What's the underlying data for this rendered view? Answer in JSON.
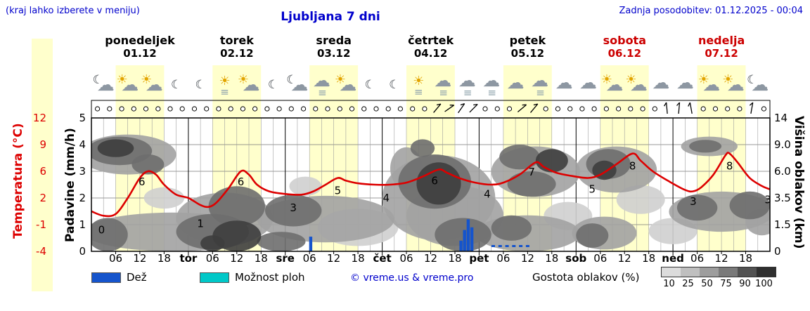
{
  "header": {
    "note": "(kraj lahko izberete v meniju)",
    "title": "Ljubljana 7 dni",
    "updated": "Zadnja posodobitev: 01.12.2025 - 00:04",
    "text_color": "#0000cc"
  },
  "days": [
    {
      "name": "ponedeljek",
      "date": "01.12",
      "weekend": false
    },
    {
      "name": "torek",
      "date": "02.12",
      "weekend": false
    },
    {
      "name": "sreda",
      "date": "03.12",
      "weekend": false
    },
    {
      "name": "četrtek",
      "date": "04.12",
      "weekend": false
    },
    {
      "name": "petek",
      "date": "05.12",
      "weekend": false
    },
    {
      "name": "sobota",
      "date": "06.12",
      "weekend": true
    },
    {
      "name": "nedelja",
      "date": "07.12",
      "weekend": true
    }
  ],
  "weekend_color": "#cc0000",
  "axes": {
    "left_temp": {
      "label": "Temperatura (°C)",
      "ticks": [
        "12",
        "9",
        "6",
        "2",
        "-1",
        "-4"
      ],
      "color": "#dd0000"
    },
    "left_precip": {
      "label": "Padavine (mm/h)",
      "ticks": [
        "5",
        "4",
        "3",
        "2",
        "1",
        "0"
      ]
    },
    "right_cloud": {
      "label": "Višina oblakov (km)",
      "ticks": [
        "14",
        "9.0",
        "6.0",
        "3.5",
        "1.5",
        "0"
      ]
    },
    "x_hour_ticks": [
      "06",
      "12",
      "18"
    ],
    "x_day_abbr": [
      "tor",
      "sre",
      "čet",
      "pet",
      "sob",
      "ned"
    ]
  },
  "legend": {
    "rain_label": "Dež",
    "shower_label": "Možnost ploh",
    "copyright": "© vreme.us & vreme.pro",
    "cloud_density_label": "Gostota oblakov (%)",
    "density_levels": [
      "10",
      "25",
      "50",
      "75",
      "90",
      "100"
    ],
    "density_colors": [
      "#dcdcdc",
      "#bfbfbf",
      "#9d9d9d",
      "#7a7a7a",
      "#525252",
      "#2f2f2f"
    ],
    "rain_color": "#1554cc",
    "shower_color": "#00c8c8"
  },
  "chart_data": {
    "type": "line",
    "title": "Ljubljana 7 dni",
    "x_axis": "hours from Mon 01.12 00:00, span 7 days (168 h)",
    "day_bands": {
      "start_hour": 6,
      "end_hour": 18,
      "color": "#ffffcc"
    },
    "temperature_c": {
      "color": "#dd0000",
      "axis_stops": [
        -4,
        -1,
        2,
        6,
        9,
        12
      ],
      "series": [
        [
          0,
          0.5
        ],
        [
          3,
          0
        ],
        [
          6,
          0.2
        ],
        [
          9,
          2
        ],
        [
          12,
          5
        ],
        [
          14,
          6
        ],
        [
          16,
          5.5
        ],
        [
          18,
          4
        ],
        [
          21,
          2.5
        ],
        [
          24,
          2
        ],
        [
          27,
          1.2
        ],
        [
          29,
          1
        ],
        [
          31,
          1.5
        ],
        [
          34,
          3.5
        ],
        [
          37,
          6
        ],
        [
          39,
          5.5
        ],
        [
          41,
          4
        ],
        [
          44,
          3
        ],
        [
          48,
          2.6
        ],
        [
          52,
          2.5
        ],
        [
          55,
          3
        ],
        [
          58,
          4
        ],
        [
          61,
          5
        ],
        [
          63,
          4.6
        ],
        [
          66,
          4.2
        ],
        [
          70,
          4
        ],
        [
          74,
          4
        ],
        [
          78,
          4.3
        ],
        [
          82,
          5.2
        ],
        [
          86,
          6.2
        ],
        [
          88,
          5.8
        ],
        [
          91,
          5
        ],
        [
          95,
          4.3
        ],
        [
          99,
          4
        ],
        [
          102,
          4.3
        ],
        [
          106,
          5.5
        ],
        [
          110,
          7
        ],
        [
          112,
          6.5
        ],
        [
          115,
          5.8
        ],
        [
          119,
          5.3
        ],
        [
          123,
          5
        ],
        [
          126,
          5.5
        ],
        [
          130,
          6.8
        ],
        [
          134,
          8
        ],
        [
          136,
          7.2
        ],
        [
          139,
          6
        ],
        [
          143,
          4.5
        ],
        [
          147,
          3.2
        ],
        [
          149,
          3
        ],
        [
          151,
          3.6
        ],
        [
          154,
          5.5
        ],
        [
          157,
          7.8
        ],
        [
          158,
          8
        ],
        [
          160,
          7
        ],
        [
          163,
          5
        ],
        [
          166,
          3.8
        ],
        [
          168,
          3.3
        ]
      ],
      "point_labels": [
        {
          "t": 2.5,
          "c": -1.6,
          "s": "0"
        },
        {
          "t": 12.5,
          "c": 4.4,
          "s": "6"
        },
        {
          "t": 27,
          "c": -0.9,
          "s": "1"
        },
        {
          "t": 37,
          "c": 4.4,
          "s": "6"
        },
        {
          "t": 50,
          "c": 0.9,
          "s": "3"
        },
        {
          "t": 61,
          "c": 3.1,
          "s": "5"
        },
        {
          "t": 73,
          "c": 2.0,
          "s": "4"
        },
        {
          "t": 85,
          "c": 4.6,
          "s": "6"
        },
        {
          "t": 98,
          "c": 2.6,
          "s": "4"
        },
        {
          "t": 109,
          "c": 5.9,
          "s": "7"
        },
        {
          "t": 124,
          "c": 3.3,
          "s": "5"
        },
        {
          "t": 134,
          "c": 6.6,
          "s": "8"
        },
        {
          "t": 149,
          "c": 1.6,
          "s": "3"
        },
        {
          "t": 158,
          "c": 6.6,
          "s": "8"
        },
        {
          "t": 167.5,
          "c": 1.8,
          "s": "3"
        }
      ]
    },
    "precipitation_mm_h": {
      "bars": [
        {
          "t": 54.3,
          "h": 0.55
        },
        {
          "t": 91.5,
          "h": 0.4
        },
        {
          "t": 92.4,
          "h": 0.8
        },
        {
          "t": 93.3,
          "h": 1.2
        },
        {
          "t": 94.2,
          "h": 0.9
        }
      ],
      "shower_marks_t": [
        99.5,
        101.2,
        102.9,
        104.6,
        106.3,
        108
      ]
    },
    "cloud_cover": {
      "height_axis_km": [
        0,
        1.5,
        3.5,
        6,
        9,
        14
      ],
      "density_legend_pct": [
        10,
        25,
        50,
        75,
        90,
        100
      ],
      "blobs": [
        {
          "t": 9,
          "km": 8.3,
          "rt": 12,
          "rkm": 2.6,
          "l": 50
        },
        {
          "t": 7,
          "km": 8.6,
          "rt": 8,
          "rkm": 1.9,
          "l": 75
        },
        {
          "t": 6,
          "km": 8.8,
          "rt": 4.5,
          "rkm": 1.2,
          "l": 90
        },
        {
          "t": 14,
          "km": 6.8,
          "rt": 4,
          "rkm": 1.1,
          "l": 75
        },
        {
          "t": 20,
          "km": 1.1,
          "rt": 22,
          "rkm": 1.3,
          "l": 50
        },
        {
          "t": 4,
          "km": 1.0,
          "rt": 5,
          "rkm": 1.0,
          "l": 75
        },
        {
          "t": 18,
          "km": 3.6,
          "rt": 5,
          "rkm": 0.9,
          "l": 25
        },
        {
          "t": 30,
          "km": 1.2,
          "rt": 9,
          "rkm": 1.1,
          "l": 75
        },
        {
          "t": 36,
          "km": 0.9,
          "rt": 6,
          "rkm": 0.9,
          "l": 90
        },
        {
          "t": 36,
          "km": 3.0,
          "rt": 7,
          "rkm": 1.6,
          "l": 75
        },
        {
          "t": 33,
          "km": 2.2,
          "rt": 12,
          "rkm": 1.8,
          "l": 50
        },
        {
          "t": 30,
          "km": 0.4,
          "rt": 3,
          "rkm": 0.5,
          "l": 90
        },
        {
          "t": 58,
          "km": 2.1,
          "rt": 17,
          "rkm": 1.6,
          "l": 50
        },
        {
          "t": 50,
          "km": 2.6,
          "rt": 7,
          "rkm": 1.2,
          "l": 75
        },
        {
          "t": 47,
          "km": 0.5,
          "rt": 6,
          "rkm": 0.6,
          "l": 75
        },
        {
          "t": 53,
          "km": 4.6,
          "rt": 4,
          "rkm": 0.9,
          "l": 25
        },
        {
          "t": 66,
          "km": 1.5,
          "rt": 10,
          "rkm": 1.2,
          "l": 25
        },
        {
          "t": 78,
          "km": 6.5,
          "rt": 4,
          "rkm": 2.2,
          "l": 50
        },
        {
          "t": 86,
          "km": 4.2,
          "rt": 14,
          "rkm": 3.6,
          "l": 50
        },
        {
          "t": 85,
          "km": 5.3,
          "rt": 9,
          "rkm": 2.6,
          "l": 75
        },
        {
          "t": 86,
          "km": 5.0,
          "rt": 5.5,
          "rkm": 2.0,
          "l": 90
        },
        {
          "t": 82,
          "km": 8.8,
          "rt": 3,
          "rkm": 1.2,
          "l": 75
        },
        {
          "t": 92,
          "km": 1.0,
          "rt": 7,
          "rkm": 1.0,
          "l": 75
        },
        {
          "t": 90,
          "km": 2.5,
          "rt": 12,
          "rkm": 2.2,
          "l": 50
        },
        {
          "t": 110,
          "km": 6.2,
          "rt": 11,
          "rkm": 2.6,
          "l": 50
        },
        {
          "t": 106,
          "km": 7.6,
          "rt": 5,
          "rkm": 1.4,
          "l": 75
        },
        {
          "t": 114,
          "km": 7.2,
          "rt": 4,
          "rkm": 1.3,
          "l": 90
        },
        {
          "t": 109,
          "km": 4.8,
          "rt": 6,
          "rkm": 1.2,
          "l": 75
        },
        {
          "t": 108,
          "km": 1.1,
          "rt": 13,
          "rkm": 1.1,
          "l": 50
        },
        {
          "t": 104,
          "km": 1.4,
          "rt": 5,
          "rkm": 0.8,
          "l": 75
        },
        {
          "t": 118,
          "km": 2.2,
          "rt": 6,
          "rkm": 1.0,
          "l": 25
        },
        {
          "t": 130,
          "km": 6.4,
          "rt": 10,
          "rkm": 2.4,
          "l": 50
        },
        {
          "t": 128,
          "km": 6.9,
          "rt": 5.5,
          "rkm": 1.6,
          "l": 75
        },
        {
          "t": 127,
          "km": 6.2,
          "rt": 3,
          "rkm": 1.0,
          "l": 90
        },
        {
          "t": 127,
          "km": 1.1,
          "rt": 8,
          "rkm": 1.0,
          "l": 50
        },
        {
          "t": 124,
          "km": 0.9,
          "rt": 4,
          "rkm": 0.7,
          "l": 75
        },
        {
          "t": 136,
          "km": 3.5,
          "rt": 6,
          "rkm": 1.2,
          "l": 25
        },
        {
          "t": 153,
          "km": 9.1,
          "rt": 7,
          "rkm": 1.4,
          "l": 50
        },
        {
          "t": 152,
          "km": 9.0,
          "rt": 4,
          "rkm": 0.9,
          "l": 75
        },
        {
          "t": 156,
          "km": 2.6,
          "rt": 13,
          "rkm": 1.5,
          "l": 50
        },
        {
          "t": 150,
          "km": 2.8,
          "rt": 5,
          "rkm": 1.0,
          "l": 75
        },
        {
          "t": 163,
          "km": 3.0,
          "rt": 5,
          "rkm": 1.1,
          "l": 75
        },
        {
          "t": 166,
          "km": 1.8,
          "rt": 4,
          "rkm": 0.9,
          "l": 50
        },
        {
          "t": 144,
          "km": 1.2,
          "rt": 6,
          "rkm": 0.8,
          "l": 25
        }
      ]
    },
    "wind": {
      "calm_symbol": "circle",
      "slot_hours": 3,
      "barbs": [
        {
          "i": 28,
          "r": 50
        },
        {
          "i": 29,
          "r": 35
        },
        {
          "i": 30,
          "r": 55
        },
        {
          "i": 31,
          "r": 45
        },
        {
          "i": 35,
          "r": 40
        },
        {
          "i": 36,
          "r": 50
        },
        {
          "i": 47,
          "r": 95
        },
        {
          "i": 48,
          "r": 85
        },
        {
          "i": 49,
          "r": 100
        },
        {
          "i": 54,
          "r": 80
        }
      ]
    },
    "weather_icons": [
      [
        "moon",
        "cloud"
      ],
      [
        "sun",
        "cloud"
      ],
      [
        "sun",
        "cloud"
      ],
      [
        "moon"
      ],
      [
        "moon"
      ],
      [
        "fog",
        "sun"
      ],
      [
        "sun",
        "cloud"
      ],
      [
        "moon"
      ],
      [
        "moon",
        "cloud"
      ],
      [
        "cloud",
        "fog"
      ],
      [
        "sun",
        "cloud"
      ],
      [
        "moon"
      ],
      [
        "moon"
      ],
      [
        "fog",
        "sun"
      ],
      [
        "cloud",
        "fog"
      ],
      [
        "cloud",
        "fog"
      ],
      [
        "cloud",
        "fog"
      ],
      [
        "cloud"
      ],
      [
        "cloud",
        "fog"
      ],
      [
        "cloud"
      ],
      [
        "cloud"
      ],
      [
        "sun",
        "cloud"
      ],
      [
        "sun",
        "cloud"
      ],
      [
        "cloud"
      ],
      [
        "cloud"
      ],
      [
        "sun",
        "cloud"
      ],
      [
        "sun",
        "cloud"
      ],
      [
        "moon",
        "cloud"
      ]
    ]
  }
}
